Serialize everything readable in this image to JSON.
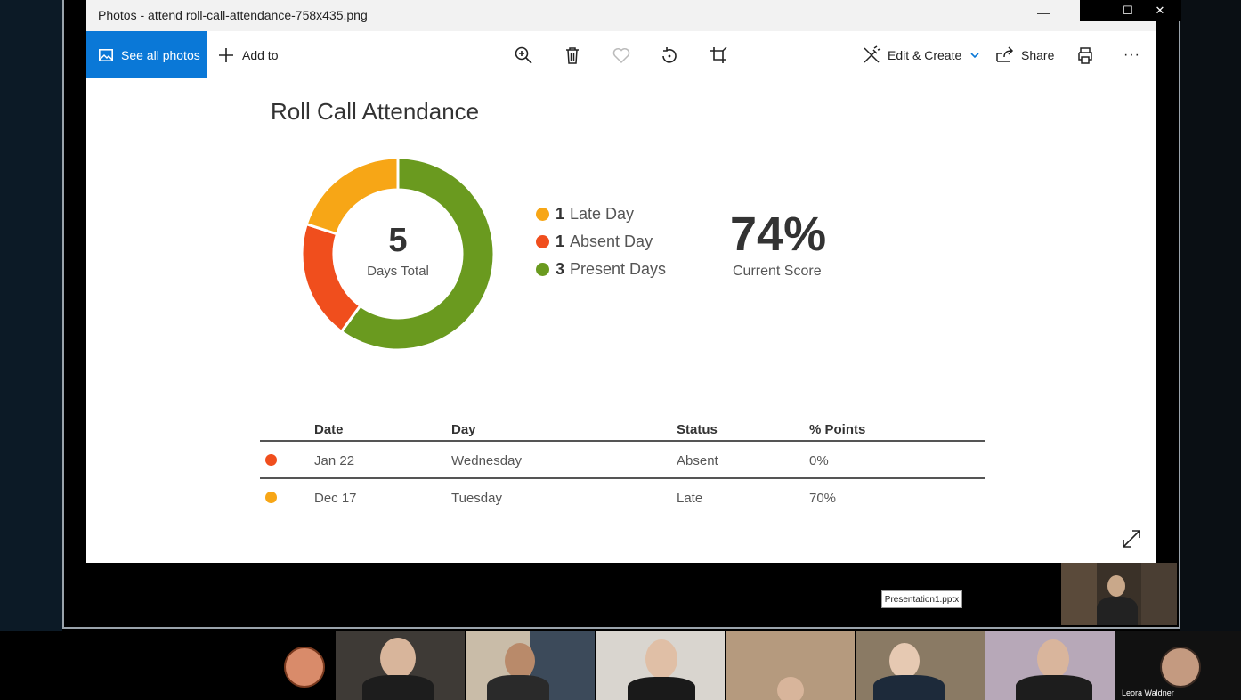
{
  "window": {
    "title": "Photos - attend roll-call-attendance-758x435.png",
    "controls": [
      "—",
      "☐",
      "✕"
    ]
  },
  "toolbar": {
    "see_all_photos": "See all photos",
    "add_to": "Add to",
    "edit_create": "Edit & Create",
    "share": "Share",
    "more": "···",
    "icons": [
      "zoom-icon",
      "delete-icon",
      "favorite-icon",
      "rotate-icon",
      "crop-icon",
      "print-icon"
    ]
  },
  "report": {
    "title": "Roll Call Attendance",
    "total_number": "5",
    "total_label": "Days Total",
    "legend": [
      {
        "count": "1",
        "label": "Late Day",
        "color": "#f7a616"
      },
      {
        "count": "1",
        "label": "Absent Day",
        "color": "#f04e1d"
      },
      {
        "count": "3",
        "label": "Present Days",
        "color": "#6a9a1f"
      }
    ],
    "score": "74%",
    "score_label": "Current Score"
  },
  "chart_data": {
    "type": "pie",
    "categories": [
      "Late Day",
      "Absent Day",
      "Present Days"
    ],
    "values": [
      1,
      1,
      3
    ],
    "colors": [
      "#f7a616",
      "#f04e1d",
      "#6a9a1f"
    ],
    "title": "Roll Call Attendance"
  },
  "table": {
    "headers": [
      "Date",
      "Day",
      "Status",
      "% Points"
    ],
    "rows": [
      {
        "color": "#f04e1d",
        "date": "Jan 22",
        "day": "Wednesday",
        "status": "Absent",
        "points": "0%"
      },
      {
        "color": "#f7a616",
        "date": "Dec 17",
        "day": "Tuesday",
        "status": "Late",
        "points": "70%"
      }
    ]
  },
  "meeting": {
    "tooltip": "Presentation1.pptx",
    "participant_name": "Leora Waldner"
  }
}
